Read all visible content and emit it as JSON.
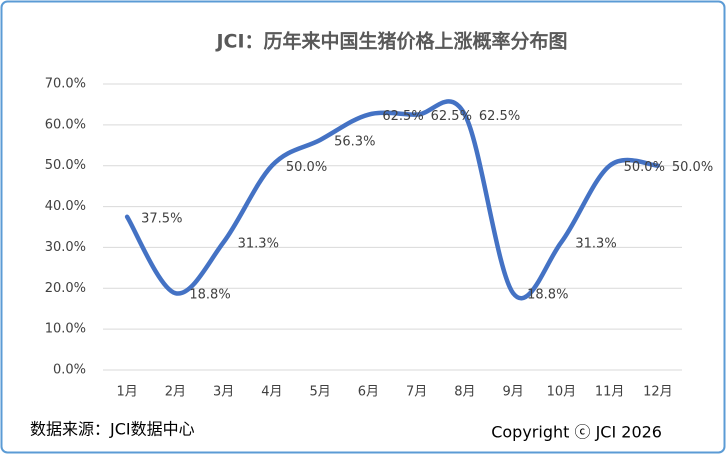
{
  "chart_data": {
    "type": "line",
    "title": "JCI：历年来中国生猪价格上涨概率分布图",
    "categories": [
      "1月",
      "2月",
      "3月",
      "4月",
      "5月",
      "6月",
      "7月",
      "8月",
      "9月",
      "10月",
      "11月",
      "12月"
    ],
    "values": [
      37.5,
      18.8,
      31.3,
      50.0,
      56.3,
      62.5,
      62.5,
      62.5,
      18.8,
      31.3,
      50.0,
      50.0
    ],
    "value_labels": [
      "37.5%",
      "18.8%",
      "31.3%",
      "50.0%",
      "56.3%",
      "62.5%",
      "62.5%",
      "62.5%",
      "18.8%",
      "31.3%",
      "50.0%",
      "50.0%"
    ],
    "color": "#4472c4",
    "smooth": true,
    "ylim": [
      0,
      70
    ],
    "yticks": [
      {
        "value": 0,
        "label": "0.0%"
      },
      {
        "value": 10,
        "label": "10.0%"
      },
      {
        "value": 20,
        "label": "20.0%"
      },
      {
        "value": 30,
        "label": "30.0%"
      },
      {
        "value": 40,
        "label": "40.0%"
      },
      {
        "value": 50,
        "label": "50.0%"
      },
      {
        "value": 60,
        "label": "60.0%"
      },
      {
        "value": 70,
        "label": "70.0%"
      }
    ],
    "grid": true,
    "annotations": [
      "数据来源：JCI数据中心",
      "Copyright ⓒ JCI 2026"
    ]
  }
}
